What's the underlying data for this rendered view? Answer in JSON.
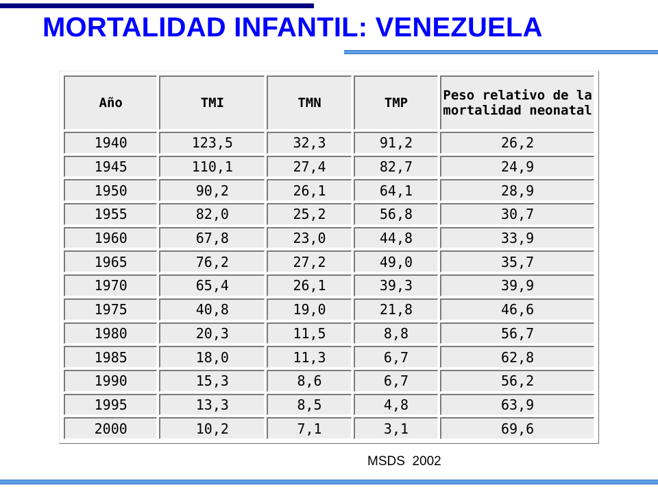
{
  "slide": {
    "title": "MORTALIDAD INFANTIL: VENEZUELA",
    "source": "MSDS  2002"
  },
  "colors": {
    "title": "#0000ff",
    "top_bar": "#000080",
    "accent_bar": "#5f9ee8",
    "cell_background": "#ececec"
  },
  "table": {
    "headers": [
      "Año",
      "TMI",
      "TMN",
      "TMP",
      "Peso relativo de la mortalidad neonatal"
    ],
    "rows": [
      [
        "1940",
        "123,5",
        "32,3",
        "91,2",
        "26,2"
      ],
      [
        "1945",
        "110,1",
        "27,4",
        "82,7",
        "24,9"
      ],
      [
        "1950",
        "90,2",
        "26,1",
        "64,1",
        "28,9"
      ],
      [
        "1955",
        "82,0",
        "25,2",
        "56,8",
        "30,7"
      ],
      [
        "1960",
        "67,8",
        "23,0",
        "44,8",
        "33,9"
      ],
      [
        "1965",
        "76,2",
        "27,2",
        "49,0",
        "35,7"
      ],
      [
        "1970",
        "65,4",
        "26,1",
        "39,3",
        "39,9"
      ],
      [
        "1975",
        "40,8",
        "19,0",
        "21,8",
        "46,6"
      ],
      [
        "1980",
        "20,3",
        "11,5",
        "8,8",
        "56,7"
      ],
      [
        "1985",
        "18,0",
        "11,3",
        "6,7",
        "62,8"
      ],
      [
        "1990",
        "15,3",
        "8,6",
        "6,7",
        "56,2"
      ],
      [
        "1995",
        "13,3",
        "8,5",
        "4,8",
        "63,9"
      ],
      [
        "2000",
        "10,2",
        "7,1",
        "3,1",
        "69,6"
      ]
    ]
  }
}
